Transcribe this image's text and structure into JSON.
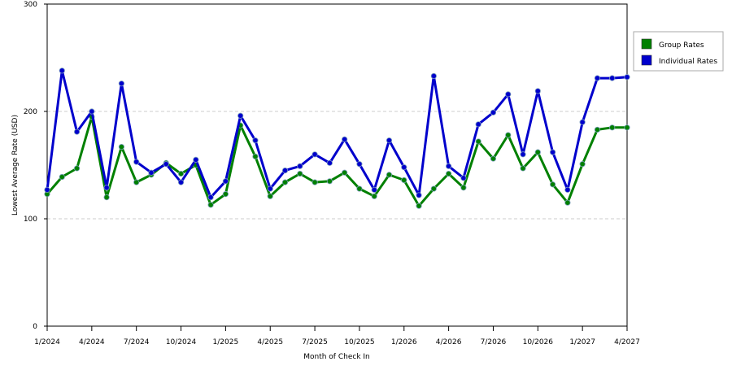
{
  "chart_data": {
    "type": "line",
    "title": "",
    "xlabel": "Month of Check In",
    "ylabel": "Lowest Average Rate (USD)",
    "ylim": [
      0,
      300
    ],
    "yticks": [
      0,
      100,
      200,
      300
    ],
    "xticks": [
      "1/2024",
      "4/2024",
      "7/2024",
      "10/2024",
      "1/2025",
      "4/2025",
      "7/2025",
      "10/2025",
      "1/2026",
      "4/2026",
      "7/2026",
      "10/2026",
      "1/2027",
      "4/2027"
    ],
    "grid": "horizontal-dashed",
    "legend_position": "right",
    "x": [
      "1/2024",
      "2/2024",
      "3/2024",
      "4/2024",
      "5/2024",
      "6/2024",
      "7/2024",
      "8/2024",
      "9/2024",
      "10/2024",
      "11/2024",
      "12/2024",
      "1/2025",
      "2/2025",
      "3/2025",
      "4/2025",
      "5/2025",
      "6/2025",
      "7/2025",
      "8/2025",
      "9/2025",
      "10/2025",
      "11/2025",
      "12/2025",
      "1/2026",
      "2/2026",
      "3/2026",
      "4/2026",
      "5/2026",
      "6/2026",
      "7/2026",
      "8/2026",
      "9/2026",
      "10/2026",
      "11/2026",
      "12/2026",
      "1/2027",
      "2/2027",
      "3/2027",
      "4/2027"
    ],
    "series": [
      {
        "name": "Group Rates",
        "color": "#008000",
        "values": [
          123,
          139,
          147,
          195,
          120,
          167,
          134,
          141,
          152,
          142,
          150,
          113,
          123,
          187,
          158,
          121,
          134,
          142,
          134,
          135,
          143,
          128,
          121,
          141,
          136,
          112,
          128,
          142,
          129,
          172,
          156,
          178,
          147,
          162,
          132,
          115,
          151,
          183,
          185,
          185
        ]
      },
      {
        "name": "Individual Rates",
        "color": "#0000cc",
        "values": [
          127,
          238,
          181,
          200,
          129,
          226,
          153,
          143,
          151,
          134,
          155,
          120,
          135,
          196,
          173,
          128,
          145,
          149,
          160,
          152,
          174,
          151,
          127,
          173,
          148,
          122,
          233,
          149,
          138,
          188,
          199,
          216,
          160,
          219,
          162,
          127,
          190,
          231,
          231,
          232
        ]
      }
    ]
  }
}
